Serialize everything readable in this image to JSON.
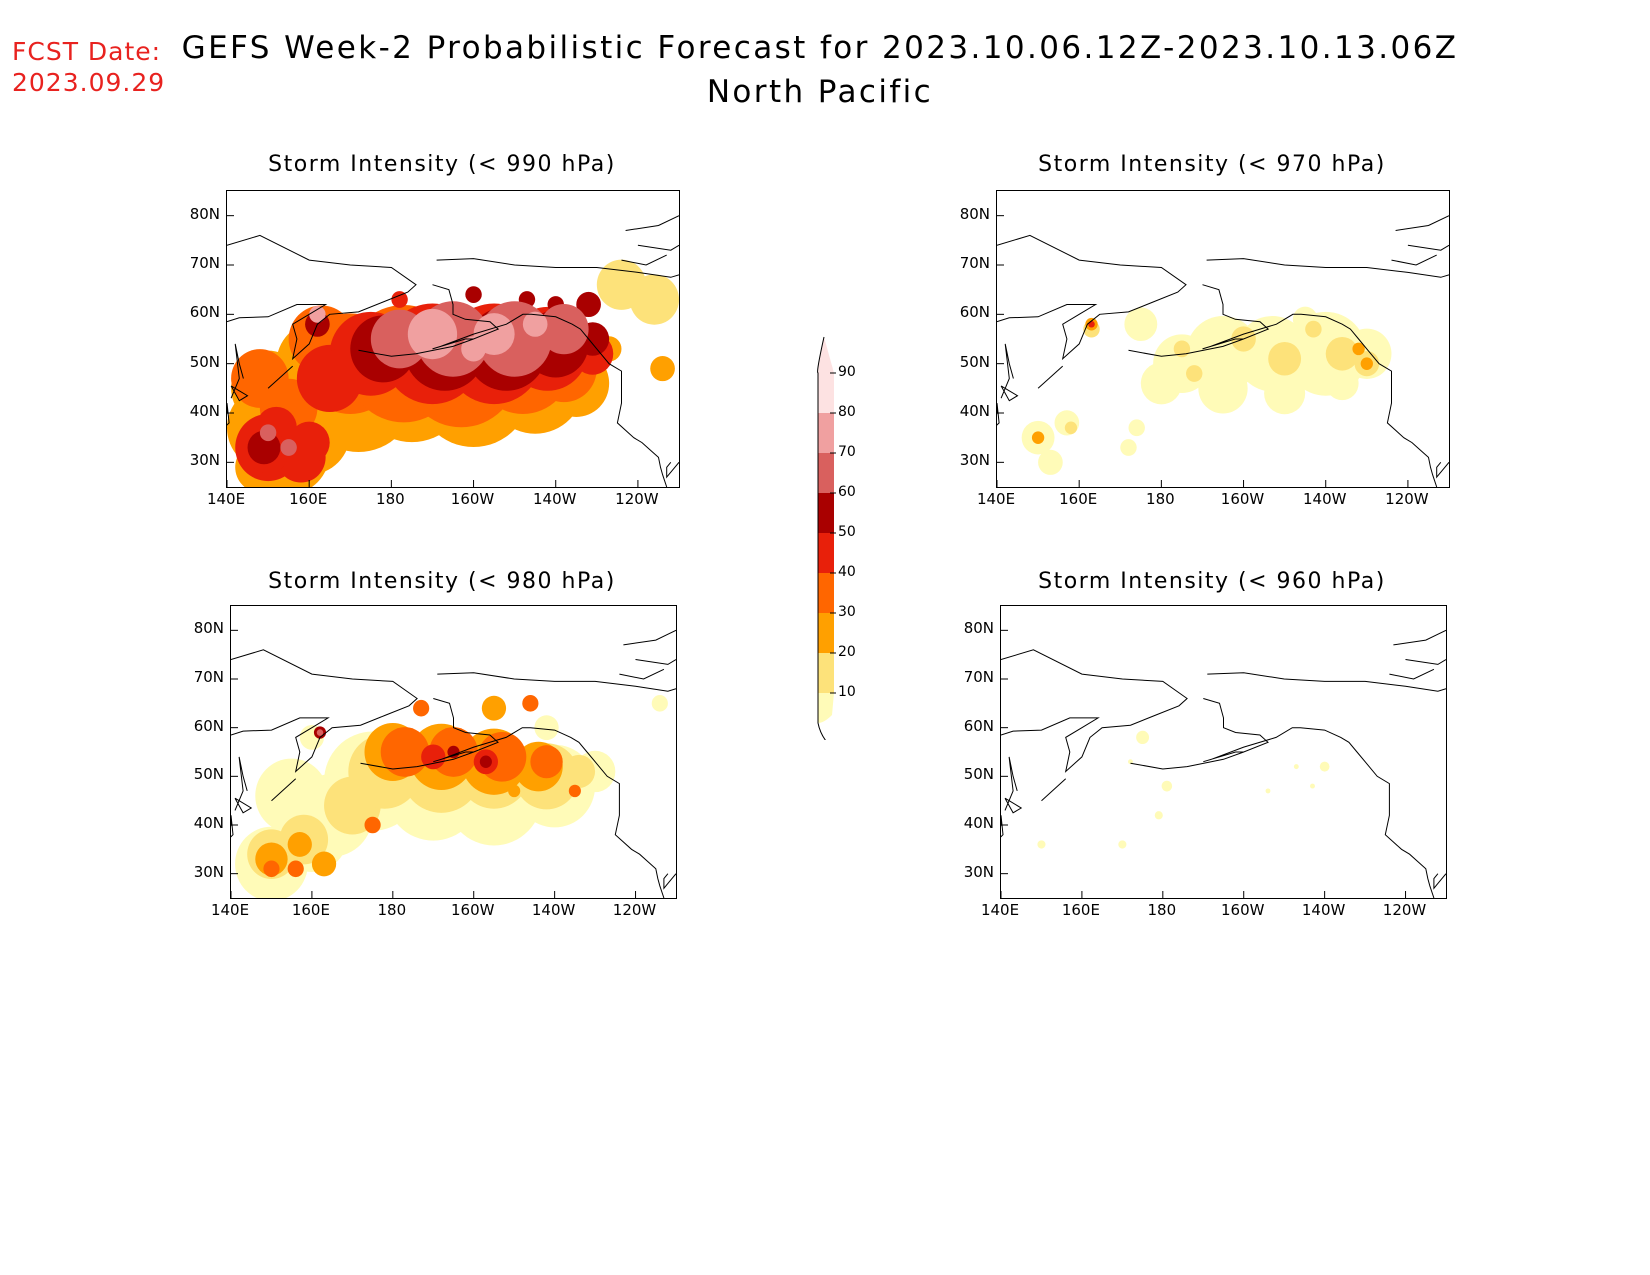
{
  "forecast_date": {
    "label": "FCST Date:",
    "value": "2023.09.29"
  },
  "title": {
    "line1": "GEFS Week-2 Probabilistic Forecast for 2023.10.06.12Z-2023.10.13.06Z",
    "line2": "North Pacific"
  },
  "axes": {
    "lat_labels": [
      "80N",
      "70N",
      "60N",
      "50N",
      "40N",
      "30N"
    ],
    "lon_labels": [
      "140E",
      "160E",
      "180",
      "160W",
      "140W",
      "120W"
    ]
  },
  "colorbar": {
    "levels": [
      10,
      20,
      30,
      40,
      50,
      60,
      70,
      80,
      90
    ],
    "labels": [
      "10",
      "20",
      "30",
      "40",
      "50",
      "60",
      "70",
      "80",
      "90"
    ],
    "colors": [
      "#fffbb8",
      "#fde27a",
      "#ffa000",
      "#ff6600",
      "#e8200a",
      "#a90000",
      "#d9605e",
      "#f0a0a0",
      "#fde2e2"
    ]
  },
  "panels": [
    {
      "id": "p990",
      "title": "Storm Intensity (< 990 hPa)"
    },
    {
      "id": "p970",
      "title": "Storm Intensity (< 970 hPa)"
    },
    {
      "id": "p980",
      "title": "Storm Intensity (< 980 hPa)"
    },
    {
      "id": "p960",
      "title": "Storm Intensity (< 960 hPa)"
    }
  ]
}
